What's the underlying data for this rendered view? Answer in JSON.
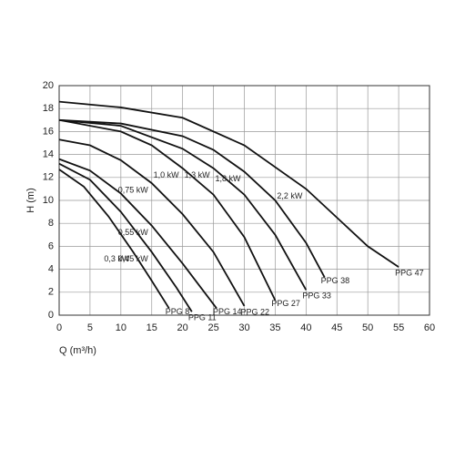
{
  "chart_data": {
    "type": "line",
    "xlabel": "Q (m³/h)",
    "ylabel": "H (m)",
    "xlim": [
      0,
      60
    ],
    "xticks": [
      0,
      5,
      10,
      15,
      20,
      25,
      30,
      35,
      40,
      45,
      50,
      55,
      60
    ],
    "ylim": [
      0,
      20
    ],
    "yticks": [
      0,
      2,
      4,
      6,
      8,
      10,
      12,
      14,
      16,
      18,
      20
    ],
    "grid": true,
    "series": [
      {
        "name": "PPG 8",
        "power": "0,3 kW",
        "color": "#111111",
        "x": [
          0,
          4,
          8,
          12,
          15,
          17.8
        ],
        "values": [
          12.7,
          11.2,
          8.6,
          5.5,
          3,
          0.6
        ]
      },
      {
        "name": "PPG 11",
        "power": "0,45 kW",
        "color": "#111111",
        "x": [
          0,
          5,
          10,
          15,
          19,
          21.5
        ],
        "values": [
          13.2,
          11.8,
          9,
          5.5,
          2.4,
          0.3
        ]
      },
      {
        "name": "PPG 14",
        "power": "0,55 kW",
        "color": "#111111",
        "x": [
          0,
          5,
          10,
          15,
          20,
          25.5
        ],
        "values": [
          13.6,
          12.6,
          10.6,
          7.8,
          4.5,
          0.6
        ]
      },
      {
        "name": "PPG 22",
        "power": "0,75 kW",
        "color": "#111111",
        "x": [
          0,
          5,
          10,
          15,
          20,
          25,
          30
        ],
        "values": [
          15.3,
          14.8,
          13.5,
          11.5,
          8.8,
          5.5,
          0.8
        ]
      },
      {
        "name": "PPG 27",
        "power": "1,0 kW",
        "color": "#111111",
        "x": [
          0,
          10,
          15,
          20,
          25,
          30,
          35
        ],
        "values": [
          17,
          16,
          14.8,
          12.8,
          10.5,
          6.8,
          1.3
        ]
      },
      {
        "name": "PPG 33",
        "power": "1,3 kW",
        "color": "#111111",
        "x": [
          0,
          10,
          20,
          25,
          30,
          35,
          40
        ],
        "values": [
          17,
          16.5,
          14.5,
          12.8,
          10.5,
          7,
          2.2
        ]
      },
      {
        "name": "PPG 38",
        "power": "1,8 kW",
        "color": "#111111",
        "x": [
          0,
          10,
          20,
          25,
          30,
          35,
          40,
          43
        ],
        "values": [
          17,
          16.7,
          15.6,
          14.4,
          12.5,
          10,
          6.3,
          3.3
        ]
      },
      {
        "name": "PPG 47",
        "power": "2,2 kW",
        "color": "#111111",
        "x": [
          0,
          10,
          20,
          30,
          40,
          45,
          50,
          55
        ],
        "values": [
          18.6,
          18.1,
          17.2,
          14.8,
          11,
          8.5,
          6,
          4.2
        ]
      }
    ]
  }
}
